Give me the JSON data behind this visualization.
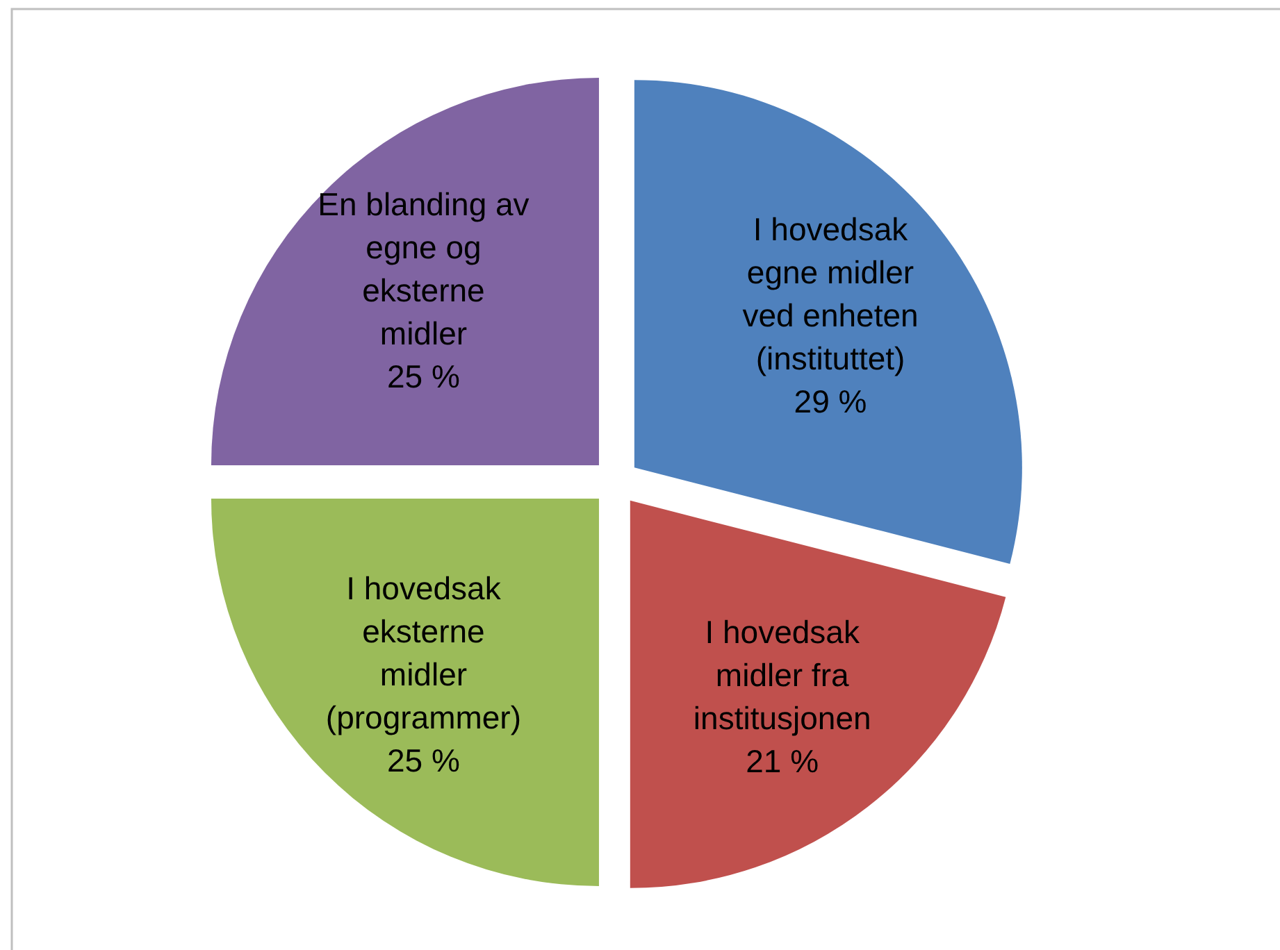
{
  "chart_data": {
    "type": "pie",
    "categories": [
      "I hovedsak egne midler ved enheten (instituttet)",
      "I hovedsak midler fra institusjonen",
      "I hovedsak eksterne midler (programmer)",
      "En blanding av egne og eksterne midler"
    ],
    "values": [
      29,
      21,
      25,
      25
    ],
    "colors": [
      "#4f81bd",
      "#c0504d",
      "#9bbb59",
      "#8064a2"
    ],
    "value_labels": [
      "29 %",
      "21 %",
      "25 %",
      "25 %"
    ]
  }
}
